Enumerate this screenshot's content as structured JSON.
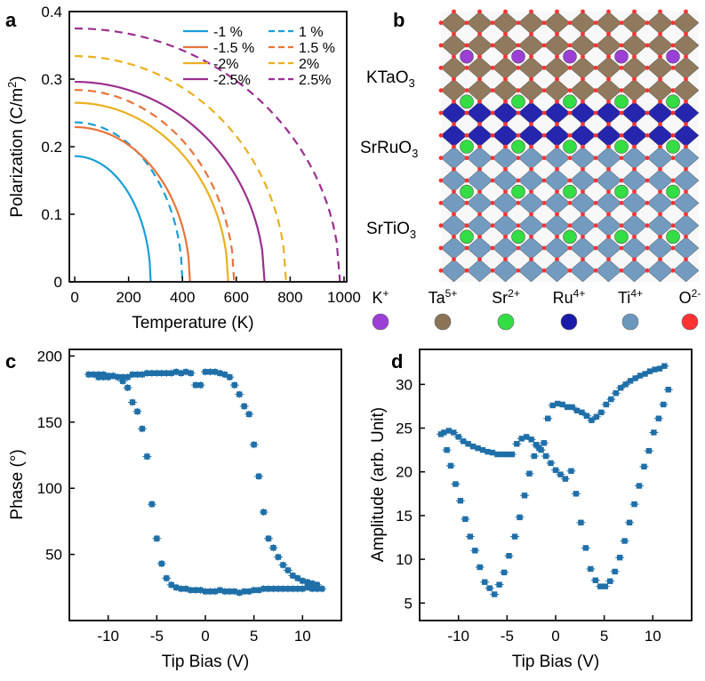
{
  "panel_labels": {
    "a": "a",
    "b": "b",
    "c": "c",
    "d": "d"
  },
  "colors": {
    "blue": "#1a9fd6",
    "orange": "#e8743b",
    "yellow": "#eab020",
    "purple": "#9b2f8f",
    "data_marker": "#1f6fa8",
    "K": "#9b3fd6",
    "Ta": "#8b7355",
    "Sr": "#33dd44",
    "Ru": "#1a1aaa",
    "Ti": "#6b97bc",
    "O": "#ff3333"
  },
  "chart_data": [
    {
      "panel": "a",
      "type": "line",
      "title": "",
      "xlabel": "Temperature (K)",
      "ylabel_main": "Polarization (C/m",
      "ylabel_sup": "2",
      "ylabel_tail": ")",
      "xlim": [
        -20,
        1010
      ],
      "ylim": [
        0,
        0.4
      ],
      "xticks": [
        0,
        200,
        400,
        600,
        800,
        1000
      ],
      "xtick_labels": [
        "0",
        "200",
        "400",
        "600",
        "800",
        "1000"
      ],
      "yticks": [
        0,
        0.1,
        0.2,
        0.3,
        0.4
      ],
      "ytick_labels": [
        "0",
        "0.1",
        "0.2",
        "0.3",
        "0.4"
      ],
      "series": [
        {
          "name": "-1 %",
          "style": "solid",
          "color": "#1a9fd6",
          "P0": 0.186,
          "Tc": 282
        },
        {
          "name": "1 %",
          "style": "dashed",
          "color": "#1a9fd6",
          "P0": 0.236,
          "Tc": 400
        },
        {
          "name": "-1.5 %",
          "style": "solid",
          "color": "#e8743b",
          "P0": 0.229,
          "Tc": 428
        },
        {
          "name": "1.5 %",
          "style": "dashed",
          "color": "#e8743b",
          "P0": 0.284,
          "Tc": 592
        },
        {
          "name": "-2%",
          "style": "solid",
          "color": "#eab020",
          "P0": 0.265,
          "Tc": 570
        },
        {
          "name": "2%",
          "style": "dashed",
          "color": "#eab020",
          "P0": 0.334,
          "Tc": 785
        },
        {
          "name": "-2.5%",
          "style": "solid",
          "color": "#9b2f8f",
          "P0": 0.296,
          "Tc": 705
        },
        {
          "name": "2.5%",
          "style": "dashed",
          "color": "#9b2f8f",
          "P0": 0.375,
          "Tc": 985
        }
      ],
      "legend": {
        "col1": [
          "-1 %",
          "-1.5 %",
          "-2%",
          "-2.5%"
        ],
        "col2": [
          "1 %",
          "1.5 %",
          "2%",
          "2.5%"
        ]
      }
    },
    {
      "panel": "c",
      "type": "scatter",
      "xlabel": "Tip Bias (V)",
      "ylabel": "Phase (°)",
      "xlim": [
        -14,
        14
      ],
      "ylim": [
        0,
        205
      ],
      "xticks": [
        -10,
        -5,
        0,
        5,
        10
      ],
      "xtick_labels": [
        "-10",
        "-5",
        "0",
        "5",
        "10"
      ],
      "yticks": [
        50,
        100,
        150,
        200
      ],
      "ytick_labels": [
        "50",
        "100",
        "150",
        "200"
      ],
      "points": [
        [
          -12,
          186
        ],
        [
          -11.5,
          186
        ],
        [
          -11,
          186
        ],
        [
          -10.5,
          186
        ],
        [
          -10,
          185
        ],
        [
          -9.5,
          185
        ],
        [
          -9,
          184
        ],
        [
          -8.5,
          181
        ],
        [
          -8,
          176
        ],
        [
          -7.5,
          165
        ],
        [
          -7,
          158
        ],
        [
          -6.5,
          145
        ],
        [
          -6,
          124
        ],
        [
          -5.5,
          88
        ],
        [
          -5,
          62
        ],
        [
          -4.5,
          43
        ],
        [
          -4,
          32
        ],
        [
          -3.5,
          27
        ],
        [
          -3,
          25
        ],
        [
          -2.5,
          24
        ],
        [
          -2,
          24
        ],
        [
          -1.5,
          23
        ],
        [
          -1,
          23
        ],
        [
          -0.5,
          23
        ],
        [
          0,
          22
        ],
        [
          0.5,
          22
        ],
        [
          1,
          22
        ],
        [
          1.5,
          23
        ],
        [
          2,
          22
        ],
        [
          2.5,
          22
        ],
        [
          3,
          22
        ],
        [
          3.5,
          21
        ],
        [
          4,
          22
        ],
        [
          4.5,
          22
        ],
        [
          5,
          23
        ],
        [
          5.5,
          23
        ],
        [
          6,
          24
        ],
        [
          6.5,
          24
        ],
        [
          7,
          24
        ],
        [
          7.5,
          24
        ],
        [
          8,
          24
        ],
        [
          8.5,
          24
        ],
        [
          9,
          24
        ],
        [
          9.5,
          24
        ],
        [
          10,
          24
        ],
        [
          10.5,
          25
        ],
        [
          11,
          24
        ],
        [
          11.5,
          24
        ],
        [
          12,
          24
        ],
        [
          11.5,
          27
        ],
        [
          11,
          28
        ],
        [
          10.5,
          29
        ],
        [
          10,
          30
        ],
        [
          9.5,
          32
        ],
        [
          9,
          34
        ],
        [
          8.5,
          38
        ],
        [
          8,
          42
        ],
        [
          7.5,
          48
        ],
        [
          7,
          55
        ],
        [
          6.5,
          62
        ],
        [
          6,
          82
        ],
        [
          5.5,
          109
        ],
        [
          5,
          133
        ],
        [
          4.5,
          156
        ],
        [
          4,
          162
        ],
        [
          3.5,
          171
        ],
        [
          3,
          178
        ],
        [
          2.5,
          184
        ],
        [
          2,
          186
        ],
        [
          1.5,
          187
        ],
        [
          1,
          188
        ],
        [
          0.5,
          188
        ],
        [
          0,
          188
        ],
        [
          -0.5,
          178
        ],
        [
          -1,
          178
        ],
        [
          -1.5,
          187
        ],
        [
          -2,
          188
        ],
        [
          -2.5,
          187
        ],
        [
          -3,
          188
        ],
        [
          -3.5,
          187
        ],
        [
          -4,
          187
        ],
        [
          -4.5,
          187
        ],
        [
          -5,
          187
        ],
        [
          -5.5,
          187
        ],
        [
          -6,
          187
        ],
        [
          -6.5,
          186
        ],
        [
          -7,
          186
        ],
        [
          -7.5,
          186
        ],
        [
          -8,
          184
        ],
        [
          -8.5,
          184
        ],
        [
          -9,
          184
        ],
        [
          -9.5,
          185
        ],
        [
          -10,
          184
        ],
        [
          -10.5,
          184
        ],
        [
          -11,
          184
        ]
      ]
    },
    {
      "panel": "d",
      "type": "scatter",
      "xlabel": "Tip Bias (V)",
      "ylabel": "Amplitude (arb. Unit)",
      "xlim": [
        -14,
        14
      ],
      "ylim": [
        3,
        34
      ],
      "xticks": [
        -10,
        -5,
        0,
        5,
        10
      ],
      "xtick_labels": [
        "-10",
        "-5",
        "0",
        "5",
        "10"
      ],
      "yticks": [
        5,
        10,
        15,
        20,
        25,
        30
      ],
      "ytick_labels": [
        "5",
        "10",
        "15",
        "20",
        "25",
        "30"
      ],
      "points": [
        [
          -11.5,
          24.5
        ],
        [
          -11,
          24.7
        ],
        [
          -10.5,
          24.5
        ],
        [
          -10,
          24
        ],
        [
          -9.5,
          23.5
        ],
        [
          -9,
          23.2
        ],
        [
          -8.5,
          22.9
        ],
        [
          -8,
          22.7
        ],
        [
          -7.5,
          22.5
        ],
        [
          -7,
          22.3
        ],
        [
          -6.5,
          22.2
        ],
        [
          -6,
          22
        ],
        [
          -5.5,
          22
        ],
        [
          -5,
          22
        ],
        [
          -4.5,
          22
        ],
        [
          -4,
          23.2
        ],
        [
          -3.5,
          23.8
        ],
        [
          -3,
          24
        ],
        [
          -2.5,
          23.7
        ],
        [
          -2,
          23.1
        ],
        [
          -1.5,
          22.5
        ],
        [
          -1,
          21.8
        ],
        [
          -0.5,
          21
        ],
        [
          0,
          20.2
        ],
        [
          0.5,
          19.7
        ],
        [
          1,
          19.2
        ],
        [
          -11.8,
          24.3
        ],
        [
          -11.2,
          22.5
        ],
        [
          -10.8,
          20.7
        ],
        [
          -10.3,
          18.6
        ],
        [
          -9.8,
          16.7
        ],
        [
          -9.3,
          14.6
        ],
        [
          -8.8,
          12.6
        ],
        [
          -8.3,
          11
        ],
        [
          -7.8,
          9.1
        ],
        [
          -7.3,
          7.4
        ],
        [
          -6.8,
          6.7
        ],
        [
          -6.3,
          6
        ],
        [
          -5.8,
          7.1
        ],
        [
          -5.3,
          8.5
        ],
        [
          -4.8,
          10.4
        ],
        [
          -4.2,
          12.6
        ],
        [
          -3.7,
          14.8
        ],
        [
          -3.2,
          17.3
        ],
        [
          -2.7,
          19.8
        ],
        [
          -2.2,
          21.8
        ],
        [
          -1.7,
          22.7
        ],
        [
          -1.2,
          23.3
        ],
        [
          -0.8,
          26.1
        ],
        [
          -0.3,
          27.6
        ],
        [
          0.2,
          27.8
        ],
        [
          0.7,
          27.7
        ],
        [
          1.2,
          27.4
        ],
        [
          1.7,
          27.4
        ],
        [
          2.2,
          27
        ],
        [
          2.7,
          26.8
        ],
        [
          3.2,
          26.4
        ],
        [
          3.7,
          25.9
        ],
        [
          4.2,
          26.3
        ],
        [
          4.7,
          26.8
        ],
        [
          5.2,
          27.7
        ],
        [
          5.7,
          28.3
        ],
        [
          6.2,
          29
        ],
        [
          6.7,
          29.6
        ],
        [
          7.2,
          30
        ],
        [
          7.7,
          30.4
        ],
        [
          8.2,
          30.7
        ],
        [
          8.7,
          31
        ],
        [
          9.2,
          31.2
        ],
        [
          9.7,
          31.5
        ],
        [
          10.2,
          31.7
        ],
        [
          10.7,
          31.8
        ],
        [
          11.2,
          32.1
        ],
        [
          1.6,
          20.1
        ],
        [
          2.1,
          17.5
        ],
        [
          2.6,
          14.2
        ],
        [
          3.1,
          11.3
        ],
        [
          3.6,
          8.9
        ],
        [
          4.1,
          7.6
        ],
        [
          4.6,
          6.9
        ],
        [
          5.1,
          6.9
        ],
        [
          5.6,
          7.5
        ],
        [
          6.1,
          8.6
        ],
        [
          6.6,
          10.2
        ],
        [
          7.1,
          12.1
        ],
        [
          7.6,
          14.2
        ],
        [
          8.1,
          16.3
        ],
        [
          8.6,
          18.4
        ],
        [
          9.1,
          20.6
        ],
        [
          9.6,
          22.4
        ],
        [
          10.1,
          24.5
        ],
        [
          10.6,
          26.1
        ],
        [
          11.1,
          27.7
        ],
        [
          11.6,
          29.4
        ]
      ]
    }
  ],
  "structure": {
    "layer_labels": [
      {
        "main": "KTaO",
        "sub": "3"
      },
      {
        "main": "SrRuO",
        "sub": "3"
      },
      {
        "main": "SrTiO",
        "sub": "3"
      }
    ],
    "legend": [
      {
        "sym": "K",
        "charge": "+",
        "color": "#9b3fd6"
      },
      {
        "sym": "Ta",
        "charge": "5+",
        "color": "#8b7355"
      },
      {
        "sym": "Sr",
        "charge": "2+",
        "color": "#33dd44"
      },
      {
        "sym": "Ru",
        "charge": "4+",
        "color": "#1a1aaa"
      },
      {
        "sym": "Ti",
        "charge": "4+",
        "color": "#6b97bc"
      },
      {
        "sym": "O",
        "charge": "2-",
        "color": "#ff3333"
      }
    ]
  }
}
